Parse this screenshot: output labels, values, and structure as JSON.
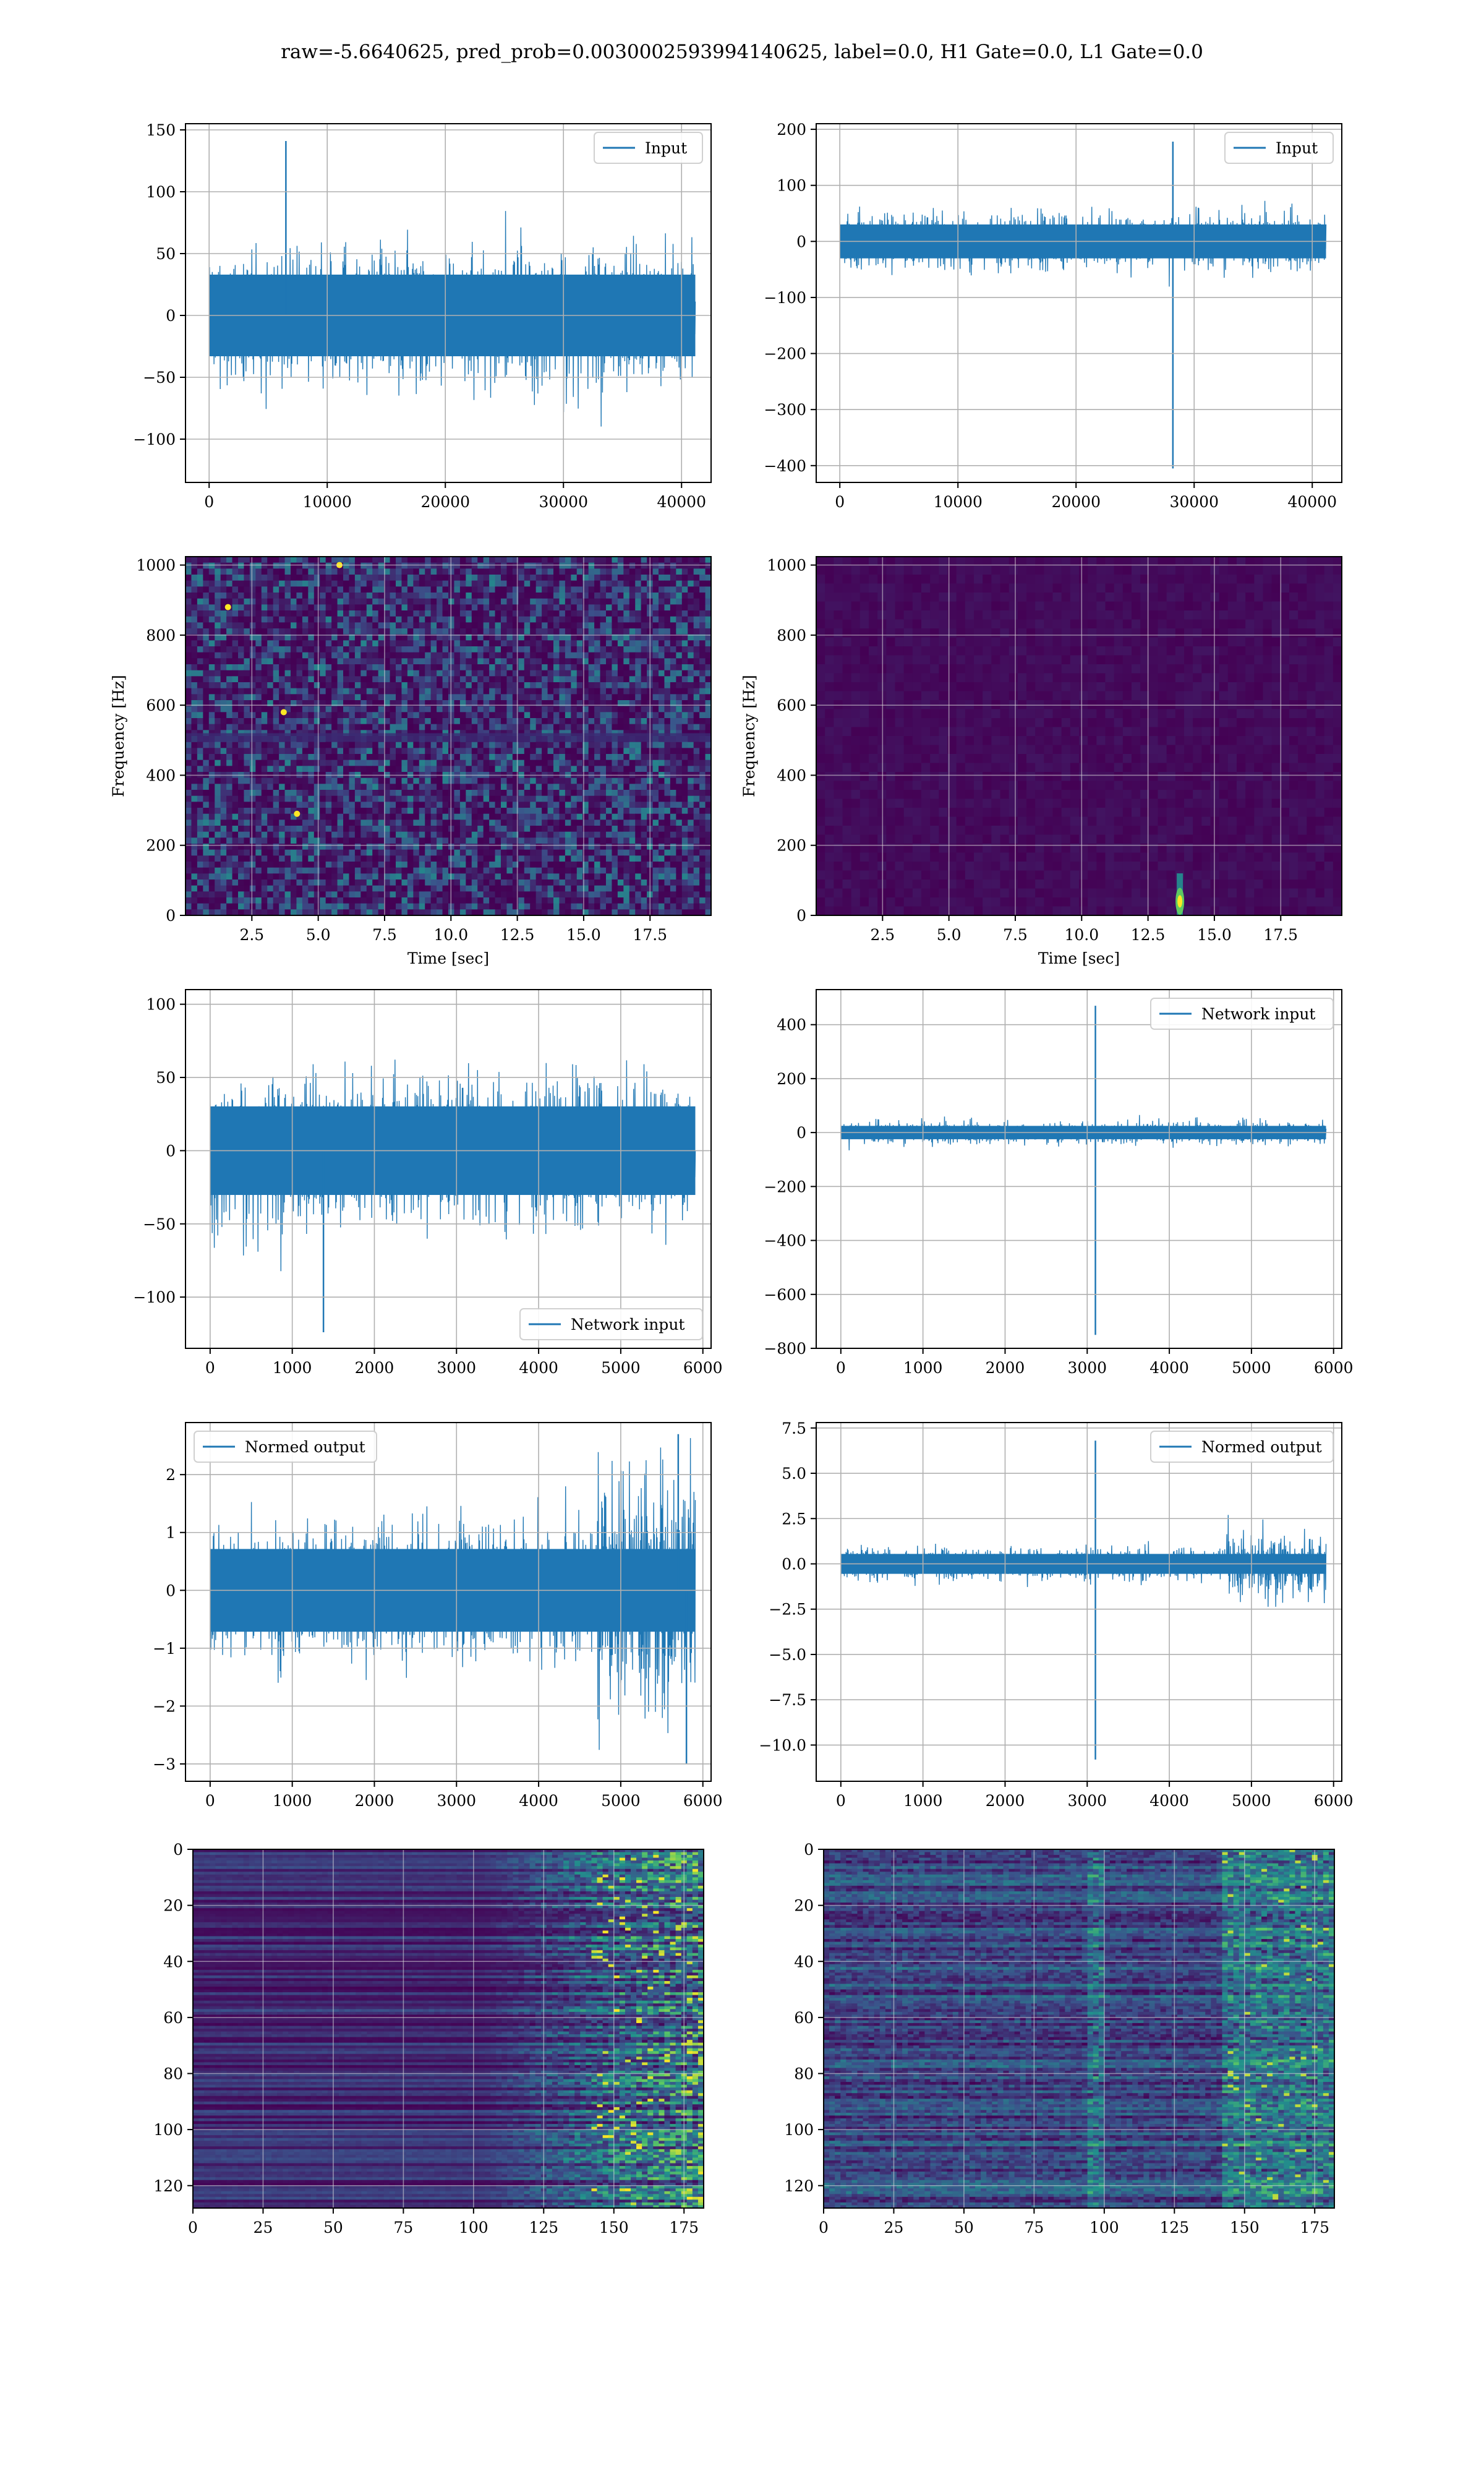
{
  "title": "raw=-5.6640625, pred_prob=0.0030002593994140625, label=0.0, H1 Gate=0.0, L1 Gate=0.0",
  "colors": {
    "line": "#1f77b4",
    "grid": "#b0b0b0",
    "spine": "#000000",
    "viridis": [
      "#440154",
      "#3b528b",
      "#21918c",
      "#5ec962",
      "#fde725"
    ]
  },
  "chart_data": [
    {
      "type": "line",
      "id": "input-h1",
      "series": [
        {
          "name": "Input",
          "noise": 60,
          "spikes": [
            {
              "x": 6500,
              "y": 141
            }
          ]
        }
      ],
      "xlim": [
        -2000,
        42500
      ],
      "ylim": [
        -135,
        155
      ],
      "xticks": [
        0,
        10000,
        20000,
        30000,
        40000
      ],
      "yticks": [
        -100,
        -50,
        0,
        50,
        100,
        150
      ],
      "xlabel": "",
      "ylabel": "",
      "legend": "upper right",
      "grid": true
    },
    {
      "type": "line",
      "id": "input-l1",
      "series": [
        {
          "name": "Input",
          "noise": 55,
          "spikes": [
            {
              "x": 28200,
              "y": 178
            },
            {
              "x": 28200,
              "y": -405
            }
          ]
        }
      ],
      "xlim": [
        -2000,
        42500
      ],
      "ylim": [
        -430,
        210
      ],
      "xticks": [
        0,
        10000,
        20000,
        30000,
        40000
      ],
      "yticks": [
        -400,
        -300,
        -200,
        -100,
        0,
        100,
        200
      ],
      "xlabel": "",
      "ylabel": "",
      "legend": "upper right",
      "grid": true
    },
    {
      "type": "heatmap",
      "id": "spectrogram-h1",
      "pattern": "noise",
      "xlim": [
        0,
        19.8
      ],
      "ylim": [
        0,
        1024
      ],
      "xticks": [
        2.5,
        5.0,
        7.5,
        10.0,
        12.5,
        15.0,
        17.5
      ],
      "yticks": [
        0,
        200,
        400,
        600,
        800,
        1000
      ],
      "xlabel": "Time [sec]",
      "ylabel": "Frequency [Hz]",
      "grid": true
    },
    {
      "type": "heatmap",
      "id": "spectrogram-l1",
      "pattern": "glitch",
      "glitch_t": 13.7,
      "xlim": [
        0,
        19.8
      ],
      "ylim": [
        0,
        1024
      ],
      "xticks": [
        2.5,
        5.0,
        7.5,
        10.0,
        12.5,
        15.0,
        17.5
      ],
      "yticks": [
        0,
        200,
        400,
        600,
        800,
        1000
      ],
      "xlabel": "Time [sec]",
      "ylabel": "Frequency [Hz]",
      "grid": true
    },
    {
      "type": "line",
      "id": "network-input-h1",
      "series": [
        {
          "name": "Network input",
          "noise": 55,
          "spikes": [
            {
              "x": 1380,
              "y": -124
            }
          ]
        }
      ],
      "xlim": [
        -300,
        6100
      ],
      "ylim": [
        -135,
        110
      ],
      "xticks": [
        0,
        1000,
        2000,
        3000,
        4000,
        5000,
        6000
      ],
      "yticks": [
        -100,
        -50,
        0,
        50,
        100
      ],
      "xlabel": "",
      "ylabel": "",
      "legend": "lower right",
      "grid": true
    },
    {
      "type": "line",
      "id": "network-input-l1",
      "series": [
        {
          "name": "Network input",
          "noise": 45,
          "spikes": [
            {
              "x": 3100,
              "y": 470
            },
            {
              "x": 3100,
              "y": -750
            }
          ]
        }
      ],
      "xlim": [
        -300,
        6100
      ],
      "ylim": [
        -800,
        530
      ],
      "xticks": [
        0,
        1000,
        2000,
        3000,
        4000,
        5000,
        6000
      ],
      "yticks": [
        -800,
        -600,
        -400,
        -200,
        0,
        200,
        400
      ],
      "xlabel": "",
      "ylabel": "",
      "legend": "upper right",
      "grid": true
    },
    {
      "type": "line",
      "id": "normed-output-h1",
      "series": [
        {
          "name": "Normed output",
          "noise": 1.3,
          "spikes": [
            {
              "x": 5800,
              "y": -3.0
            },
            {
              "x": 5700,
              "y": 2.7
            }
          ]
        }
      ],
      "xlim": [
        -300,
        6100
      ],
      "ylim": [
        -3.3,
        2.9
      ],
      "xticks": [
        0,
        1000,
        2000,
        3000,
        4000,
        5000,
        6000
      ],
      "yticks": [
        -3,
        -2,
        -1,
        0,
        1,
        2
      ],
      "xlabel": "",
      "ylabel": "",
      "legend": "upper left",
      "grid": true
    },
    {
      "type": "line",
      "id": "normed-output-l1",
      "series": [
        {
          "name": "Normed output",
          "noise": 1.0,
          "spikes": [
            {
              "x": 3100,
              "y": 6.8
            },
            {
              "x": 3100,
              "y": -10.8
            }
          ]
        }
      ],
      "xlim": [
        -300,
        6100
      ],
      "ylim": [
        -12.0,
        7.8
      ],
      "xticks": [
        0,
        1000,
        2000,
        3000,
        4000,
        5000,
        6000
      ],
      "yticks": [
        -10.0,
        -7.5,
        -5.0,
        -2.5,
        0.0,
        2.5,
        5.0,
        7.5
      ],
      "xlabel": "",
      "ylabel": "",
      "legend": "upper right",
      "grid": true
    },
    {
      "type": "heatmap",
      "id": "feature-map-h1",
      "pattern": "rows-h1",
      "xlim": [
        0,
        182
      ],
      "ylim": [
        128,
        0
      ],
      "xticks": [
        0,
        25,
        50,
        75,
        100,
        125,
        150,
        175
      ],
      "yticks": [
        0,
        20,
        40,
        60,
        80,
        100,
        120
      ],
      "xlabel": "",
      "ylabel": "",
      "grid": true
    },
    {
      "type": "heatmap",
      "id": "feature-map-l1",
      "pattern": "rows-l1",
      "xlim": [
        0,
        182
      ],
      "ylim": [
        128,
        0
      ],
      "xticks": [
        0,
        25,
        50,
        75,
        100,
        125,
        150,
        175
      ],
      "yticks": [
        0,
        20,
        40,
        60,
        80,
        100,
        120
      ],
      "xlabel": "",
      "ylabel": "",
      "grid": true
    }
  ]
}
